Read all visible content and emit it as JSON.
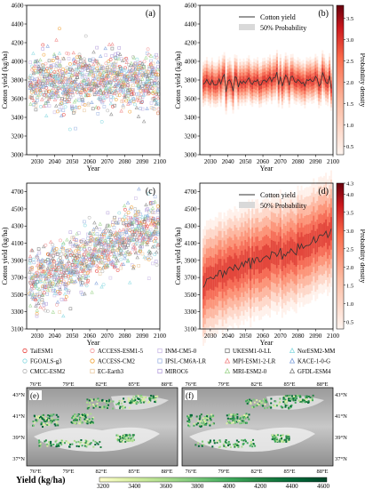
{
  "panels": [
    {
      "id": "a",
      "label": "(a)",
      "type": "scatter",
      "ylabel": "Cotton yield (kg/ha)",
      "xlabel": "Year",
      "xlim": [
        2024,
        2100
      ],
      "ylim": [
        3000,
        4600
      ],
      "xticks": [
        2030,
        2040,
        2050,
        2060,
        2070,
        2080,
        2090,
        2100
      ],
      "yticks": [
        3000,
        3200,
        3400,
        3600,
        3800,
        4000,
        4200,
        4400,
        4600
      ]
    },
    {
      "id": "b",
      "label": "(b)",
      "type": "line",
      "ylabel": "Cotton yield (kg/ha)",
      "xlabel": "Year",
      "xlim": [
        2024,
        2100
      ],
      "ylim": [
        3000,
        4600
      ],
      "xticks": [
        2030,
        2040,
        2050,
        2060,
        2070,
        2080,
        2090,
        2100
      ],
      "yticks": [
        3000,
        3200,
        3400,
        3600,
        3800,
        4000,
        4200,
        4400,
        4600
      ],
      "legend": [
        "Cotton yield",
        "50% Probability"
      ],
      "colorbar": {
        "label": "Probability density",
        "ticks": [
          "0.5",
          "1.0",
          "1.5",
          "2.0",
          "2.5",
          "3.0",
          "3.5"
        ],
        "range": [
          0.3,
          3.8
        ]
      }
    },
    {
      "id": "c",
      "label": "(c)",
      "type": "scatter",
      "ylabel": "Cotton yield (kg/ha)",
      "xlabel": "Year",
      "xlim": [
        2024,
        2100
      ],
      "ylim": [
        3100,
        4800
      ],
      "xticks": [
        2030,
        2040,
        2050,
        2060,
        2070,
        2080,
        2090,
        2100
      ],
      "yticks": [
        3100,
        3300,
        3500,
        3700,
        3900,
        4100,
        4300,
        4500,
        4700
      ]
    },
    {
      "id": "d",
      "label": "(d)",
      "type": "line",
      "ylabel": "Cotton yield (kg/ha)",
      "xlabel": "Year",
      "xlim": [
        2024,
        2100
      ],
      "ylim": [
        3100,
        4800
      ],
      "xticks": [
        2030,
        2040,
        2050,
        2060,
        2070,
        2080,
        2090,
        2100
      ],
      "yticks": [
        3100,
        3300,
        3500,
        3700,
        3900,
        4100,
        4300,
        4500,
        4700
      ],
      "legend": [
        "Cotton yield",
        "50% Probability"
      ],
      "colorbar": {
        "label": "Probability density",
        "ticks": [
          "0.5",
          "1.0",
          "1.5",
          "2.0",
          "2.5",
          "3.0",
          "3.5",
          "4.0",
          "4.3"
        ],
        "range": [
          0.3,
          4.3
        ]
      }
    }
  ],
  "models": [
    {
      "name": "TaiESM1",
      "marker": "circle",
      "color": "#e8413c"
    },
    {
      "name": "ACCESS-ESM1-5",
      "marker": "circle",
      "color": "#f39a9a"
    },
    {
      "name": "INM-CM5-0",
      "marker": "square",
      "color": "#c9b8e6"
    },
    {
      "name": "UKESM1-0-LL",
      "marker": "square",
      "color": "#777777"
    },
    {
      "name": "NorESM2-MM",
      "marker": "triangle",
      "color": "#86d8e0"
    },
    {
      "name": "FGOALS-g3",
      "marker": "circle",
      "color": "#86d8e0"
    },
    {
      "name": "ACCESS-CM2",
      "marker": "circle",
      "color": "#f0a030"
    },
    {
      "name": "IPSL-CM6A-LR",
      "marker": "square",
      "color": "#9db5e3"
    },
    {
      "name": "MPI-ESM1-2-LR",
      "marker": "triangle",
      "color": "#f08080"
    },
    {
      "name": "KACE-1-0-G",
      "marker": "triangle",
      "color": "#7a9cd9"
    },
    {
      "name": "CMCC-ESM2",
      "marker": "circle",
      "color": "#b3b3b3"
    },
    {
      "name": "EC-Earth3",
      "marker": "square",
      "color": "#e8c8a0"
    },
    {
      "name": "MIROC6",
      "marker": "square",
      "color": "#b39ddb"
    },
    {
      "name": "MRI-ESM2-0",
      "marker": "triangle",
      "color": "#9bd48a"
    },
    {
      "name": "GFDL-ESM4",
      "marker": "triangle",
      "color": "#7f7f7f"
    }
  ],
  "maps": [
    {
      "label": "(e)",
      "lon_ticks": [
        "76°E",
        "79°E",
        "82°E",
        "85°E",
        "88°E"
      ],
      "lat_ticks": [
        "37°N",
        "39°N",
        "41°N",
        "43°N"
      ]
    },
    {
      "label": "(f)",
      "lon_ticks": [
        "76°E",
        "79°E",
        "82°E",
        "85°E",
        "88°E"
      ],
      "lat_ticks": [
        "37°N",
        "39°N",
        "41°N",
        "43°N"
      ]
    }
  ],
  "map_colorbar": {
    "title": "Yield (kg/ha)",
    "ticks": [
      "3200",
      "3400",
      "3600",
      "3800",
      "4000",
      "4200",
      "4400",
      "4600"
    ],
    "colors": [
      "#ffffcc",
      "#d9f0a3",
      "#addd8e",
      "#78c679",
      "#41ab5d",
      "#238443",
      "#006837",
      "#004529"
    ]
  },
  "chart_data": [
    {
      "type": "scatter",
      "panel": "a",
      "x_range": [
        2026,
        2099
      ],
      "y_mean": 3780,
      "y_spread": [
        3150,
        4540
      ]
    },
    {
      "type": "line",
      "panel": "b",
      "x_range": [
        2026,
        2099
      ],
      "y_mean_start": 3760,
      "y_mean_end": 3810,
      "band_50": [
        3650,
        3950
      ]
    },
    {
      "type": "scatter",
      "panel": "c",
      "x_range": [
        2026,
        2099
      ],
      "y_mean_start": 3620,
      "y_mean_end": 4300,
      "y_spread": [
        3250,
        4750
      ]
    },
    {
      "type": "line",
      "panel": "d",
      "x_range": [
        2026,
        2099
      ],
      "y_mean_start": 3620,
      "y_mean_end": 4250,
      "band_50": [
        3500,
        4350
      ]
    }
  ]
}
